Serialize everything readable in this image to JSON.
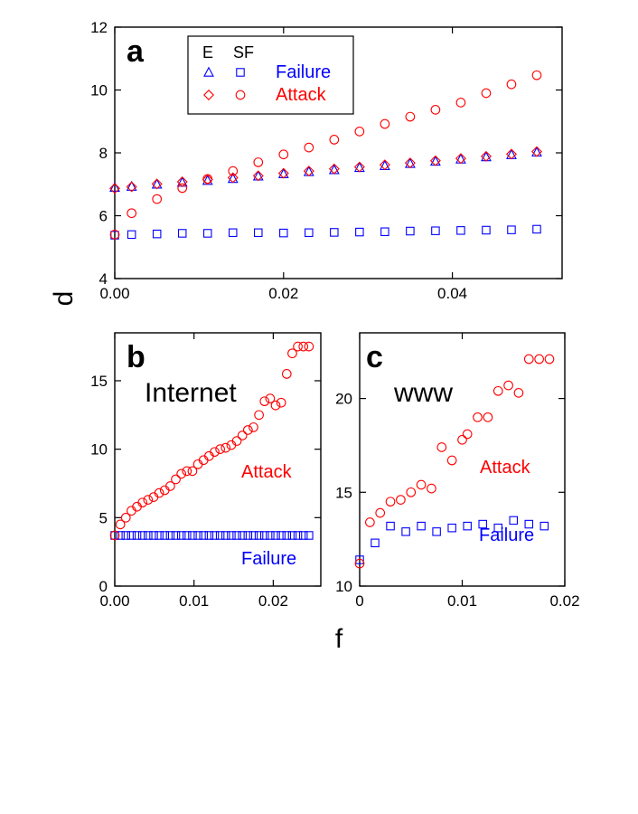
{
  "chart_data": [
    {
      "panel": "a",
      "type": "scatter",
      "xlim": [
        0,
        0.053
      ],
      "ylim": [
        4,
        12
      ],
      "xticks": [
        "0.00",
        "0.02",
        "0.04"
      ],
      "yticks": [
        "4",
        "6",
        "8",
        "10",
        "12"
      ],
      "legend": {
        "headers": [
          "E",
          "SF"
        ],
        "rows": [
          {
            "label": "Failure",
            "color": "#0000ff"
          },
          {
            "label": "Attack",
            "color": "#ff0000"
          }
        ],
        "position": "top-left"
      },
      "series": [
        {
          "name": "E Failure",
          "marker": "triangle",
          "color": "#0000ff",
          "x": [
            0,
            0.002,
            0.005,
            0.008,
            0.011,
            0.014,
            0.017,
            0.02,
            0.023,
            0.026,
            0.029,
            0.032,
            0.035,
            0.038,
            0.041,
            0.044,
            0.047,
            0.05
          ],
          "y": [
            6.9,
            6.93,
            7.0,
            7.06,
            7.12,
            7.18,
            7.26,
            7.33,
            7.4,
            7.46,
            7.53,
            7.59,
            7.66,
            7.73,
            7.8,
            7.87,
            7.94,
            8.02
          ]
        },
        {
          "name": "SF Failure",
          "marker": "square",
          "color": "#0000ff",
          "x": [
            0,
            0.002,
            0.005,
            0.008,
            0.011,
            0.014,
            0.017,
            0.02,
            0.023,
            0.026,
            0.029,
            0.032,
            0.035,
            0.038,
            0.041,
            0.044,
            0.047,
            0.05
          ],
          "y": [
            5.38,
            5.4,
            5.42,
            5.44,
            5.44,
            5.46,
            5.46,
            5.45,
            5.46,
            5.47,
            5.48,
            5.49,
            5.51,
            5.52,
            5.53,
            5.54,
            5.55,
            5.57
          ]
        },
        {
          "name": "E Attack",
          "marker": "diamond",
          "color": "#ff0000",
          "x": [
            0,
            0.002,
            0.005,
            0.008,
            0.011,
            0.014,
            0.017,
            0.02,
            0.023,
            0.026,
            0.029,
            0.032,
            0.035,
            0.038,
            0.041,
            0.044,
            0.047,
            0.05
          ],
          "y": [
            6.87,
            6.92,
            7.01,
            7.08,
            7.15,
            7.21,
            7.27,
            7.35,
            7.42,
            7.49,
            7.55,
            7.62,
            7.68,
            7.75,
            7.82,
            7.89,
            7.96,
            8.04
          ]
        },
        {
          "name": "SF Attack",
          "marker": "circle",
          "color": "#ff0000",
          "x": [
            0,
            0.002,
            0.005,
            0.008,
            0.011,
            0.014,
            0.017,
            0.02,
            0.023,
            0.026,
            0.029,
            0.032,
            0.035,
            0.038,
            0.041,
            0.044,
            0.047,
            0.05
          ],
          "y": [
            5.4,
            6.08,
            6.53,
            6.88,
            7.17,
            7.42,
            7.7,
            7.95,
            8.17,
            8.42,
            8.68,
            8.92,
            9.15,
            9.37,
            9.6,
            9.9,
            10.18,
            10.47
          ]
        }
      ]
    },
    {
      "panel": "b",
      "type": "scatter",
      "title": "Internet",
      "xlim": [
        0,
        0.026
      ],
      "ylim": [
        0,
        18.5
      ],
      "xticks": [
        "0.00",
        "0.01",
        "0.02"
      ],
      "yticks": [
        "0",
        "5",
        "10",
        "15"
      ],
      "labels": [
        {
          "text": "Attack",
          "color": "#ff0000"
        },
        {
          "text": "Failure",
          "color": "#0000ff"
        }
      ],
      "series": [
        {
          "name": "Failure",
          "marker": "square",
          "color": "#0000ff",
          "x": [
            0.0,
            0.0007,
            0.0014,
            0.0021,
            0.0028,
            0.0035,
            0.0042,
            0.0049,
            0.0056,
            0.0063,
            0.007,
            0.0077,
            0.0084,
            0.0091,
            0.0098,
            0.0105,
            0.0112,
            0.0119,
            0.0126,
            0.0133,
            0.014,
            0.0147,
            0.0154,
            0.0161,
            0.0168,
            0.0175,
            0.0182,
            0.0189,
            0.0196,
            0.0203,
            0.021,
            0.0217,
            0.0224,
            0.0231,
            0.0238,
            0.0245
          ],
          "y": [
            3.7,
            3.7,
            3.7,
            3.7,
            3.7,
            3.7,
            3.7,
            3.7,
            3.7,
            3.7,
            3.7,
            3.7,
            3.7,
            3.7,
            3.7,
            3.7,
            3.7,
            3.7,
            3.7,
            3.7,
            3.7,
            3.7,
            3.7,
            3.7,
            3.7,
            3.7,
            3.7,
            3.7,
            3.7,
            3.7,
            3.7,
            3.7,
            3.7,
            3.7,
            3.7,
            3.7
          ]
        },
        {
          "name": "Attack",
          "marker": "circle",
          "color": "#ff0000",
          "x": [
            0.0,
            0.0007,
            0.0014,
            0.0021,
            0.0028,
            0.0035,
            0.0042,
            0.0049,
            0.0056,
            0.0063,
            0.007,
            0.0077,
            0.0084,
            0.0091,
            0.0098,
            0.0105,
            0.0112,
            0.0119,
            0.0126,
            0.0133,
            0.014,
            0.0147,
            0.0154,
            0.0161,
            0.0168,
            0.0175,
            0.0182,
            0.0189,
            0.0196,
            0.0203,
            0.021,
            0.0217,
            0.0224,
            0.0231,
            0.0238,
            0.0245
          ],
          "y": [
            3.7,
            4.5,
            5.0,
            5.5,
            5.8,
            6.1,
            6.3,
            6.5,
            6.8,
            7.0,
            7.3,
            7.8,
            8.2,
            8.4,
            8.4,
            8.9,
            9.2,
            9.5,
            9.8,
            10.0,
            10.1,
            10.3,
            10.6,
            11.0,
            11.4,
            11.6,
            12.5,
            13.5,
            13.7,
            13.2,
            13.4,
            15.5,
            17.0,
            17.5,
            17.5,
            17.5
          ]
        }
      ]
    },
    {
      "panel": "c",
      "type": "scatter",
      "title": "www",
      "xlim": [
        0,
        0.02
      ],
      "ylim": [
        10,
        23.5
      ],
      "xticks": [
        "0",
        "0.01",
        "0.02"
      ],
      "yticks": [
        "10",
        "15",
        "20"
      ],
      "labels": [
        {
          "text": "Attack",
          "color": "#ff0000"
        },
        {
          "text": "Failure",
          "color": "#0000ff"
        }
      ],
      "series": [
        {
          "name": "Failure",
          "marker": "square",
          "color": "#0000ff",
          "x": [
            0.0,
            0.0015,
            0.003,
            0.0045,
            0.006,
            0.0075,
            0.009,
            0.0105,
            0.012,
            0.0135,
            0.015,
            0.0165,
            0.018
          ],
          "y": [
            11.4,
            12.3,
            13.2,
            12.9,
            13.2,
            12.9,
            13.1,
            13.2,
            13.3,
            13.1,
            13.5,
            13.3,
            13.2
          ]
        },
        {
          "name": "Attack",
          "marker": "circle",
          "color": "#ff0000",
          "x": [
            0.0,
            0.001,
            0.002,
            0.003,
            0.004,
            0.005,
            0.006,
            0.007,
            0.008,
            0.009,
            0.01,
            0.0105,
            0.0115,
            0.0125,
            0.0135,
            0.0145,
            0.0155,
            0.0165,
            0.0175,
            0.0185
          ],
          "y": [
            11.2,
            13.4,
            13.9,
            14.5,
            14.6,
            15.0,
            15.4,
            15.2,
            17.4,
            16.7,
            17.8,
            18.1,
            19.0,
            19.0,
            20.4,
            20.7,
            20.3,
            22.1,
            22.1,
            22.1
          ]
        }
      ]
    }
  ],
  "labels": {
    "panel_a": "a",
    "panel_b": "b",
    "panel_c": "c",
    "y_axis": "d",
    "x_axis": "f",
    "legend_e": "E",
    "legend_sf": "SF",
    "legend_failure": "Failure",
    "legend_attack": "Attack",
    "internet": "Internet",
    "www": "www",
    "b_attack": "Attack",
    "b_failure": "Failure",
    "c_attack": "Attack",
    "c_failure": "Failure"
  },
  "colors": {
    "failure": "#0000ff",
    "attack": "#ff0000"
  }
}
